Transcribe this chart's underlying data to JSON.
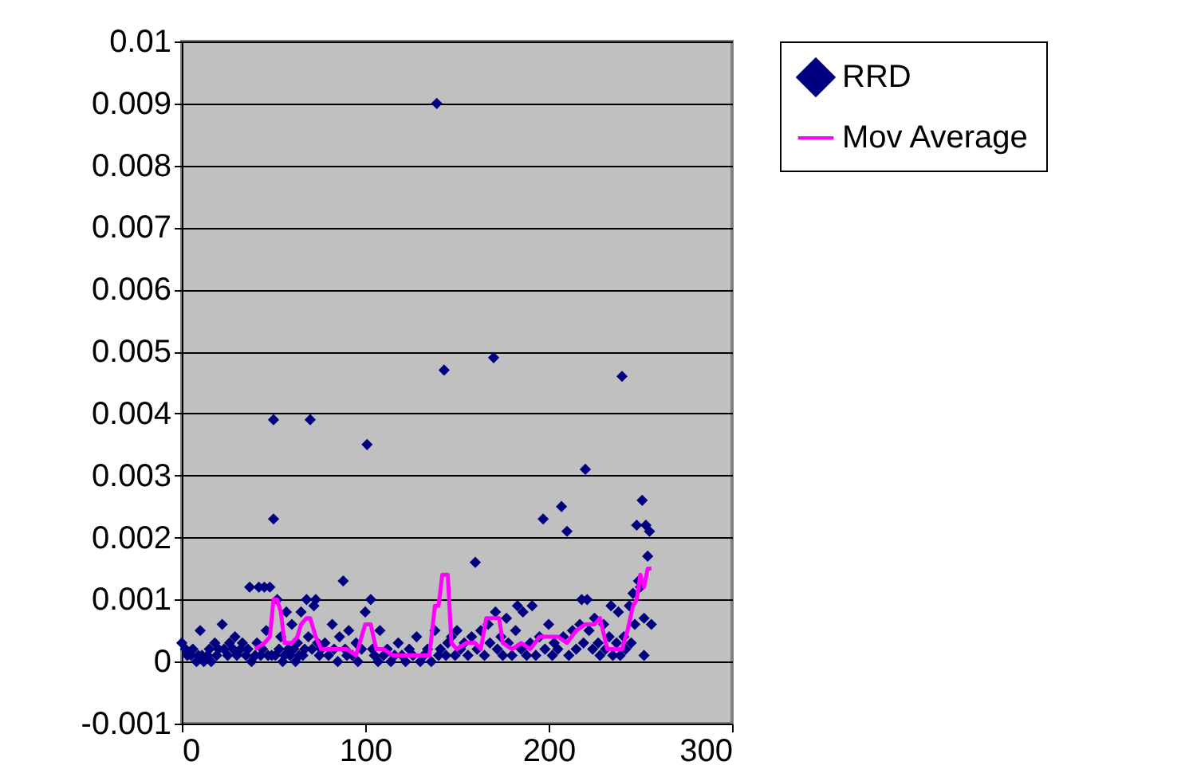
{
  "chart_data": {
    "type": "scatter",
    "xlim": [
      0,
      300
    ],
    "xticks": [
      0,
      100,
      200,
      300
    ],
    "ylim": [
      -0.001,
      0.01
    ],
    "yticks": [
      -0.001,
      0,
      0.001,
      0.002,
      0.003,
      0.004,
      0.005,
      0.006,
      0.007,
      0.008,
      0.009,
      0.01
    ],
    "grid": "y",
    "legend": "top right",
    "series": [
      {
        "name": "RRD",
        "marker": "diamond",
        "color": "#000080",
        "x": [
          0,
          2,
          3,
          5,
          6,
          8,
          9,
          10,
          11,
          12,
          14,
          15,
          16,
          18,
          19,
          20,
          22,
          23,
          25,
          26,
          28,
          29,
          30,
          32,
          33,
          35,
          36,
          37,
          38,
          40,
          41,
          42,
          43,
          44,
          45,
          46,
          47,
          48,
          49,
          50,
          50,
          51,
          52,
          53,
          54,
          55,
          56,
          57,
          58,
          59,
          60,
          61,
          62,
          63,
          64,
          65,
          66,
          67,
          68,
          69,
          70,
          71,
          72,
          73,
          74,
          75,
          76,
          78,
          80,
          82,
          83,
          85,
          86,
          88,
          89,
          90,
          91,
          93,
          95,
          96,
          98,
          100,
          101,
          103,
          104,
          105,
          107,
          108,
          110,
          112,
          114,
          116,
          118,
          120,
          122,
          124,
          126,
          128,
          130,
          132,
          134,
          136,
          138,
          139,
          140,
          141,
          143,
          144,
          145,
          147,
          149,
          150,
          152,
          154,
          156,
          158,
          160,
          161,
          163,
          165,
          167,
          168,
          170,
          171,
          172,
          174,
          175,
          177,
          178,
          180,
          182,
          183,
          185,
          186,
          188,
          190,
          191,
          193,
          195,
          197,
          198,
          200,
          202,
          203,
          205,
          207,
          208,
          210,
          211,
          213,
          215,
          217,
          218,
          219,
          220,
          221,
          222,
          224,
          225,
          227,
          228,
          230,
          231,
          233,
          234,
          235,
          237,
          238,
          239,
          240,
          241,
          242,
          244,
          245,
          246,
          247,
          248,
          249,
          250,
          251,
          252,
          253,
          254,
          255,
          256,
          252
        ],
        "values": [
          0.0003,
          0.0002,
          0.0001,
          0.0001,
          0.0002,
          0,
          0.0001,
          0.0005,
          0.0001,
          0,
          0.0001,
          0.0002,
          0,
          0.0003,
          0.0001,
          0.0002,
          0.0006,
          0.0002,
          0.0001,
          0.0003,
          0.0002,
          0.0004,
          0.0001,
          0.0002,
          0.0003,
          0.0001,
          0.0002,
          0.0012,
          0,
          0.0001,
          0.0003,
          0.0012,
          0.0001,
          0.0002,
          0.0012,
          0.0005,
          0.0001,
          0.0012,
          0.0001,
          0.0039,
          0.0023,
          0.0001,
          0.001,
          0.0002,
          0.0004,
          0,
          0.0001,
          0.0008,
          0.0002,
          0.0001,
          0.0006,
          0.0002,
          0,
          0.0003,
          0.0001,
          0.0008,
          0.0001,
          0.0002,
          0.001,
          0.0004,
          0.0039,
          0.0002,
          0.0009,
          0.001,
          0.0003,
          0.0001,
          0.0002,
          0.0003,
          0.0001,
          0.0006,
          0.0002,
          0,
          0.0004,
          0.0013,
          0.0002,
          0.0001,
          0.0005,
          0.0001,
          0.0003,
          0,
          0.0002,
          0.0008,
          0.0035,
          0.001,
          0.0002,
          0.0001,
          0,
          0.0005,
          0.0001,
          0.0002,
          0,
          0.0001,
          0.0003,
          0.0001,
          0,
          0.0002,
          0.0001,
          0.0004,
          0,
          0.0001,
          0.0002,
          0,
          0.0005,
          0.009,
          0.0001,
          0.0002,
          0.0047,
          0.0001,
          0.0003,
          0.0004,
          0.0001,
          0.0005,
          0.0002,
          0.0003,
          0.0001,
          0.0004,
          0.0016,
          0.0002,
          0.0005,
          0.0001,
          0.0006,
          0.0003,
          0.0049,
          0.0008,
          0.0002,
          0.0004,
          0.0001,
          0.0007,
          0.0003,
          0.0001,
          0.0005,
          0.0009,
          0.0002,
          0.0008,
          0.0001,
          0.0003,
          0.0009,
          0.0001,
          0.0004,
          0.0023,
          0.0002,
          0.0006,
          0.0001,
          0.0003,
          0.0002,
          0.0025,
          0.0004,
          0.0021,
          0.0001,
          0.0005,
          0.0002,
          0.0006,
          0.001,
          0.0003,
          0.0031,
          0.001,
          0.0005,
          0.0002,
          0.0007,
          0.0003,
          0.0001,
          0.0006,
          0.0002,
          0.0004,
          0.0009,
          0.0001,
          0.0003,
          0.0008,
          0.0001,
          0.0046,
          0.0004,
          0.0002,
          0.0009,
          0.0003,
          0.0011,
          0.0006,
          0.0022,
          0.0013,
          0.0012,
          0.0026,
          0.0007,
          0.0022,
          0.0017,
          0.0021,
          0.0006,
          0.0001
        ]
      },
      {
        "name": "Mov Average",
        "type": "line",
        "color": "#ff00ff",
        "marker": "none",
        "line_style": "solid",
        "x": [
          40,
          45,
          48,
          50,
          52,
          54,
          56,
          60,
          63,
          65,
          68,
          70,
          73,
          76,
          80,
          85,
          90,
          95,
          100,
          103,
          106,
          110,
          115,
          120,
          125,
          130,
          135,
          138,
          140,
          142,
          145,
          147,
          150,
          155,
          160,
          163,
          166,
          170,
          173,
          175,
          180,
          185,
          190,
          195,
          200,
          205,
          210,
          215,
          220,
          225,
          228,
          232,
          236,
          240,
          243,
          246,
          248,
          250,
          252,
          254,
          256
        ],
        "values": [
          0.0002,
          0.0003,
          0.0004,
          0.001,
          0.001,
          0.0008,
          0.0003,
          0.0003,
          0.0004,
          0.0006,
          0.0007,
          0.0007,
          0.0004,
          0.0002,
          0.0002,
          0.0002,
          0.0002,
          0.0001,
          0.0006,
          0.0006,
          0.0002,
          0.0002,
          0.0001,
          0.0001,
          0.0001,
          0.0001,
          0.0001,
          0.0009,
          0.0009,
          0.0014,
          0.0014,
          0.0003,
          0.0002,
          0.0003,
          0.0003,
          0.0002,
          0.0007,
          0.0007,
          0.0007,
          0.0003,
          0.0002,
          0.0003,
          0.0002,
          0.0004,
          0.0004,
          0.0004,
          0.0003,
          0.0005,
          0.0006,
          0.0006,
          0.0007,
          0.0002,
          0.0002,
          0.0002,
          0.0005,
          0.0009,
          0.001,
          0.0014,
          0.0012,
          0.0015,
          0.0015
        ]
      }
    ]
  }
}
